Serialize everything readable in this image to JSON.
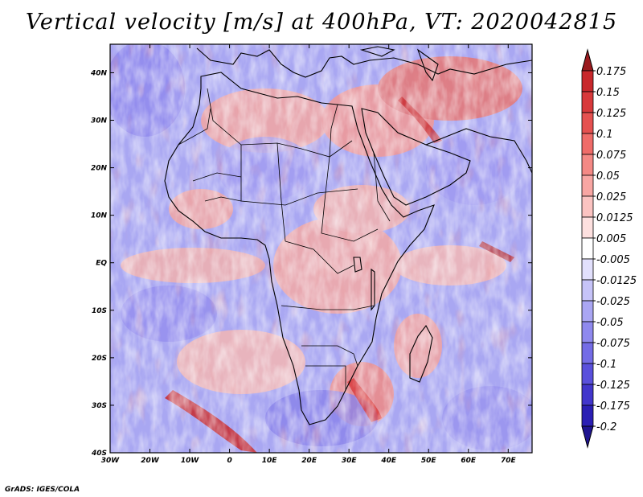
{
  "title": "Vertical velocity [m/s] at 400hPa, VT: 2020042815",
  "credit": "GrADS: IGES/COLA",
  "map": {
    "lon_range": [
      -30,
      76
    ],
    "lat_range": [
      -40,
      46
    ],
    "lon_ticks": [
      {
        "value": -30,
        "label": "30W"
      },
      {
        "value": -20,
        "label": "20W"
      },
      {
        "value": -10,
        "label": "10W"
      },
      {
        "value": 0,
        "label": "0"
      },
      {
        "value": 10,
        "label": "10E"
      },
      {
        "value": 20,
        "label": "20E"
      },
      {
        "value": 30,
        "label": "30E"
      },
      {
        "value": 40,
        "label": "40E"
      },
      {
        "value": 50,
        "label": "50E"
      },
      {
        "value": 60,
        "label": "60E"
      },
      {
        "value": 70,
        "label": "70E"
      }
    ],
    "lat_ticks": [
      {
        "value": 40,
        "label": "40N"
      },
      {
        "value": 30,
        "label": "30N"
      },
      {
        "value": 20,
        "label": "20N"
      },
      {
        "value": 10,
        "label": "10N"
      },
      {
        "value": 0,
        "label": "EQ"
      },
      {
        "value": -10,
        "label": "10S"
      },
      {
        "value": -20,
        "label": "20S"
      },
      {
        "value": -30,
        "label": "30S"
      },
      {
        "value": -40,
        "label": "40S"
      }
    ]
  },
  "colorbar": {
    "levels": [
      {
        "label": "0.175",
        "color": "#b01f24"
      },
      {
        "label": "0.15",
        "color": "#c8282c"
      },
      {
        "label": "0.125",
        "color": "#d8393b"
      },
      {
        "label": "0.1",
        "color": "#e55150"
      },
      {
        "label": "0.075",
        "color": "#ef6c69"
      },
      {
        "label": "0.05",
        "color": "#f48985"
      },
      {
        "label": "0.025",
        "color": "#f8a6a3"
      },
      {
        "label": "0.0125",
        "color": "#fbc3c1"
      },
      {
        "label": "0.005",
        "color": "#fde0df"
      },
      {
        "label": "-0.005",
        "color": "#ffffff"
      },
      {
        "label": "-0.0125",
        "color": "#e2e0fc"
      },
      {
        "label": "-0.025",
        "color": "#c6c3f8"
      },
      {
        "label": "-0.05",
        "color": "#aaa6f3"
      },
      {
        "label": "-0.075",
        "color": "#8f89ee"
      },
      {
        "label": "-0.1",
        "color": "#746ce6"
      },
      {
        "label": "-0.125",
        "color": "#5a50dc"
      },
      {
        "label": "-0.175",
        "color": "#4236cc"
      },
      {
        "label": "-0.2",
        "color": "#2b1fb4"
      }
    ],
    "top_arrow_color": "#9a1a1e",
    "bottom_arrow_color": "#1f1490"
  }
}
